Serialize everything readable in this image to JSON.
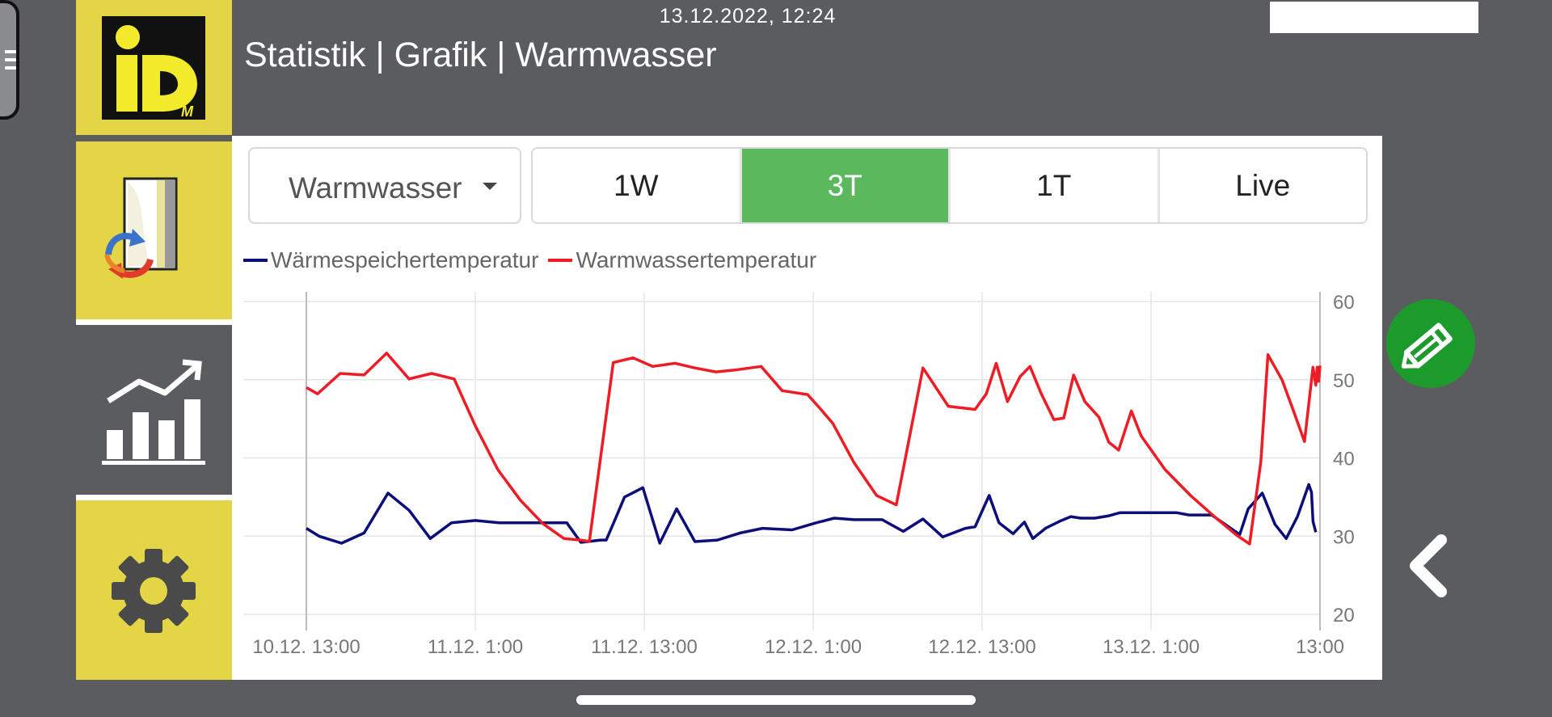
{
  "header": {
    "datetime": "13.12.2022, 12:24",
    "title": "Statistik | Grafik | Warmwasser"
  },
  "sidebar": {
    "logo_text": "iDM",
    "items": [
      {
        "name": "exchange",
        "icon": "heat-exchange-icon"
      },
      {
        "name": "statistics",
        "icon": "bar-chart-trend-icon",
        "active": true
      },
      {
        "name": "settings",
        "icon": "gear-icon"
      }
    ]
  },
  "toolbar": {
    "dropdown_value": "Warmwasser",
    "ranges": [
      {
        "label": "1W",
        "active": false
      },
      {
        "label": "3T",
        "active": true
      },
      {
        "label": "1T",
        "active": false
      },
      {
        "label": "Live",
        "active": false
      }
    ]
  },
  "colors": {
    "accent_yellow": "#e3d545",
    "active_green": "#5cb85c",
    "fab_green": "#1d9a2c",
    "series_blue": "#0c0e7a",
    "series_red": "#ee1c25"
  },
  "chart_data": {
    "type": "line",
    "title": "",
    "xlabel": "",
    "ylabel": "",
    "xlim": [
      0,
      72
    ],
    "ylim": [
      20,
      60
    ],
    "y_axis_side": "right",
    "y_ticks": [
      20,
      30,
      40,
      50,
      60
    ],
    "x_ticks": [
      {
        "x": 0,
        "label": "10.12. 13:00"
      },
      {
        "x": 12,
        "label": "11.12. 1:00"
      },
      {
        "x": 24,
        "label": "11.12. 13:00"
      },
      {
        "x": 36,
        "label": "12.12. 1:00"
      },
      {
        "x": 48,
        "label": "12.12. 13:00"
      },
      {
        "x": 60,
        "label": "13.12. 1:00"
      },
      {
        "x": 72,
        "label": "13:00"
      }
    ],
    "grid": true,
    "legend_position": "top-left",
    "series": [
      {
        "name": "Wärmespeichertemperatur",
        "color": "#0c0e7a",
        "points": [
          [
            0,
            31
          ],
          [
            0.9,
            30
          ],
          [
            2.5,
            29.1
          ],
          [
            4.1,
            30.4
          ],
          [
            5.8,
            35.5
          ],
          [
            7.3,
            33.3
          ],
          [
            8.8,
            29.7
          ],
          [
            10.3,
            31.7
          ],
          [
            12,
            32
          ],
          [
            13.7,
            31.7
          ],
          [
            16,
            31.7
          ],
          [
            18.3,
            31.7
          ],
          [
            18.5,
            31.7
          ],
          [
            19.5,
            29.2
          ],
          [
            20.9,
            29.5
          ],
          [
            21.3,
            29.5
          ],
          [
            21.9,
            32
          ],
          [
            22.6,
            35
          ],
          [
            23.9,
            36.2
          ],
          [
            25.1,
            29.1
          ],
          [
            26.3,
            33.5
          ],
          [
            27.6,
            29.3
          ],
          [
            29.2,
            29.5
          ],
          [
            30.8,
            30.4
          ],
          [
            32.4,
            31
          ],
          [
            34.5,
            30.8
          ],
          [
            36.2,
            31.7
          ],
          [
            37.5,
            32.3
          ],
          [
            38.9,
            32.1
          ],
          [
            40.9,
            32.1
          ],
          [
            42.4,
            30.6
          ],
          [
            43.8,
            32.2
          ],
          [
            45.2,
            29.9
          ],
          [
            46.8,
            31
          ],
          [
            47.5,
            31.2
          ],
          [
            48.5,
            35.2
          ],
          [
            49.2,
            31.7
          ],
          [
            50.2,
            30.3
          ],
          [
            51,
            31.8
          ],
          [
            51.6,
            29.7
          ],
          [
            52.5,
            31
          ],
          [
            53.5,
            31.9
          ],
          [
            54.3,
            32.5
          ],
          [
            55,
            32.3
          ],
          [
            56,
            32.3
          ],
          [
            57,
            32.6
          ],
          [
            57.8,
            33
          ],
          [
            60,
            33
          ],
          [
            61.8,
            33
          ],
          [
            62.7,
            32.7
          ],
          [
            64.3,
            32.7
          ],
          [
            66.3,
            30.2
          ],
          [
            66.9,
            33.5
          ],
          [
            67.9,
            35.5
          ],
          [
            68.8,
            31.5
          ],
          [
            69.6,
            29.7
          ],
          [
            70.4,
            32.5
          ],
          [
            71.2,
            36.6
          ],
          [
            71.4,
            35.6
          ],
          [
            71.5,
            31.9
          ],
          [
            71.7,
            30.5
          ]
        ]
      },
      {
        "name": "Warmwassertemperatur",
        "color": "#ee1c25",
        "points": [
          [
            0,
            49
          ],
          [
            0.8,
            48.2
          ],
          [
            2.4,
            50.8
          ],
          [
            4.1,
            50.6
          ],
          [
            5.7,
            53.4
          ],
          [
            7.3,
            50.1
          ],
          [
            8.9,
            50.8
          ],
          [
            10.5,
            50.1
          ],
          [
            12,
            44.1
          ],
          [
            13.6,
            38.5
          ],
          [
            15.2,
            34.6
          ],
          [
            16.8,
            31.6
          ],
          [
            18.3,
            29.7
          ],
          [
            19.5,
            29.5
          ],
          [
            20.1,
            29.3
          ],
          [
            21.8,
            52.2
          ],
          [
            23.2,
            52.8
          ],
          [
            24.6,
            51.7
          ],
          [
            26.2,
            52.1
          ],
          [
            27.6,
            51.5
          ],
          [
            29.1,
            51
          ],
          [
            30.7,
            51.3
          ],
          [
            32.3,
            51.7
          ],
          [
            33.8,
            48.6
          ],
          [
            35.6,
            48.1
          ],
          [
            36.5,
            46.3
          ],
          [
            37.4,
            44.4
          ],
          [
            38.9,
            39.4
          ],
          [
            40.5,
            35.2
          ],
          [
            41.9,
            34
          ],
          [
            43.8,
            51.5
          ],
          [
            45.6,
            46.6
          ],
          [
            47.5,
            46.2
          ],
          [
            48.3,
            48.2
          ],
          [
            49,
            52.1
          ],
          [
            49.8,
            47.2
          ],
          [
            50.7,
            50.4
          ],
          [
            51.4,
            51.7
          ],
          [
            52.2,
            48.2
          ],
          [
            53.1,
            44.9
          ],
          [
            53.8,
            45.1
          ],
          [
            54.5,
            50.6
          ],
          [
            55.3,
            47.2
          ],
          [
            56.3,
            45.2
          ],
          [
            57,
            42
          ],
          [
            57.7,
            41
          ],
          [
            58.6,
            46
          ],
          [
            59.3,
            42.8
          ],
          [
            61,
            38.5
          ],
          [
            62.8,
            35.2
          ],
          [
            64.5,
            32.5
          ],
          [
            66.1,
            30.1
          ],
          [
            67,
            29
          ],
          [
            67.8,
            39.5
          ],
          [
            68.3,
            53.2
          ],
          [
            69.3,
            50
          ],
          [
            70.1,
            46.1
          ],
          [
            70.9,
            42.1
          ],
          [
            71.5,
            51.6
          ],
          [
            71.7,
            49.3
          ],
          [
            71.8,
            51.6
          ],
          [
            71.9,
            49.8
          ],
          [
            72,
            51.8
          ]
        ]
      }
    ]
  }
}
